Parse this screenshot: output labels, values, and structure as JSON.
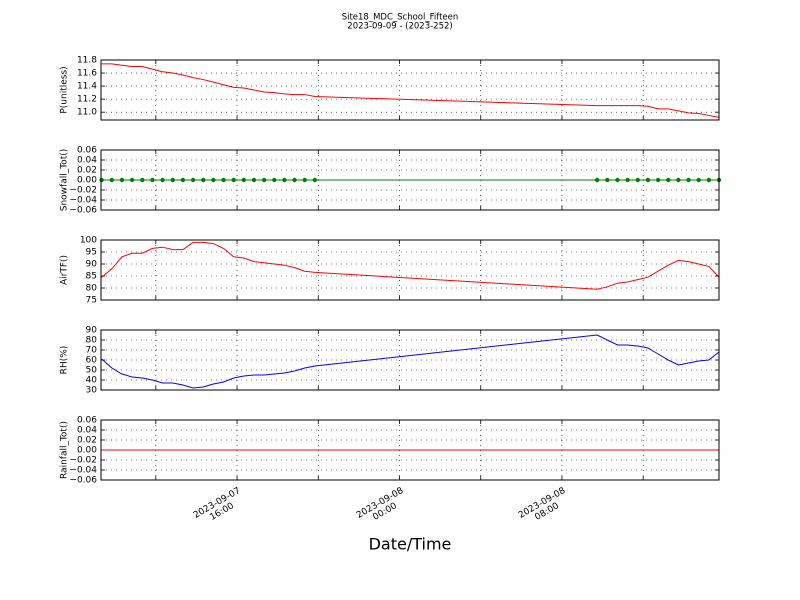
{
  "chart_data": [
    {
      "type": "line",
      "title": "Site18_MDC_School_Fifteen",
      "subtitle": "2023-09-09 - (2023-252)",
      "ylabel": "P(unitless)",
      "x": [
        "2023-09-07 09:20",
        "2023-09-07 09:50",
        "2023-09-07 10:20",
        "2023-09-07 10:50",
        "2023-09-07 11:20",
        "2023-09-07 11:50",
        "2023-09-07 12:20",
        "2023-09-07 12:50",
        "2023-09-07 13:20",
        "2023-09-07 13:50",
        "2023-09-07 14:20",
        "2023-09-07 14:50",
        "2023-09-07 15:20",
        "2023-09-07 15:50",
        "2023-09-07 16:20",
        "2023-09-07 16:50",
        "2023-09-07 17:20",
        "2023-09-07 17:50",
        "2023-09-07 18:20",
        "2023-09-07 18:50",
        "2023-09-07 19:20",
        "2023-09-07 19:50",
        "2023-09-08 09:44",
        "2023-09-08 10:14",
        "2023-09-08 10:44",
        "2023-09-08 11:14",
        "2023-09-08 11:44",
        "2023-09-08 12:14",
        "2023-09-08 12:44",
        "2023-09-08 13:14",
        "2023-09-08 13:44",
        "2023-09-08 14:14",
        "2023-09-08 14:44",
        "2023-09-08 15:14",
        "2023-09-08 15:44"
      ],
      "xlim": [
        "2023-09-07 09:18",
        "2023-09-08 15:44"
      ],
      "ylim": [
        10.88,
        11.8
      ],
      "yticks": [
        {
          "value": 11,
          "label": "11.0"
        },
        11.2,
        11.4,
        11.6,
        11.8
      ],
      "grid": true,
      "series": [
        {
          "color": "#ff0000",
          "values": [
            11.74,
            11.74,
            11.72,
            11.7,
            11.7,
            11.66,
            11.62,
            11.6,
            11.57,
            11.53,
            11.5,
            11.46,
            11.42,
            11.38,
            11.37,
            11.34,
            11.31,
            11.3,
            11.28,
            11.27,
            11.27,
            11.24,
            11.1,
            11.1,
            11.1,
            11.1,
            11.1,
            11.09,
            11.05,
            11.05,
            11.02,
            10.99,
            10.98,
            10.95,
            10.92
          ]
        }
      ]
    },
    {
      "type": "line",
      "ylabel": "Snowfall_Tot()",
      "x": [
        "2023-09-07 09:20",
        "2023-09-07 09:50",
        "2023-09-07 10:20",
        "2023-09-07 10:50",
        "2023-09-07 11:20",
        "2023-09-07 11:50",
        "2023-09-07 12:20",
        "2023-09-07 12:50",
        "2023-09-07 13:20",
        "2023-09-07 13:50",
        "2023-09-07 14:20",
        "2023-09-07 14:50",
        "2023-09-07 15:20",
        "2023-09-07 15:50",
        "2023-09-07 16:20",
        "2023-09-07 16:50",
        "2023-09-07 17:20",
        "2023-09-07 17:50",
        "2023-09-07 18:20",
        "2023-09-07 18:50",
        "2023-09-07 19:20",
        "2023-09-07 19:50",
        "2023-09-08 09:44",
        "2023-09-08 10:14",
        "2023-09-08 10:44",
        "2023-09-08 11:14",
        "2023-09-08 11:44",
        "2023-09-08 12:14",
        "2023-09-08 12:44",
        "2023-09-08 13:14",
        "2023-09-08 13:44",
        "2023-09-08 14:14",
        "2023-09-08 14:44",
        "2023-09-08 15:14",
        "2023-09-08 15:44"
      ],
      "xlim": [
        "2023-09-07 09:18",
        "2023-09-08 15:44"
      ],
      "ylim": [
        -0.06,
        0.06
      ],
      "yticks": [
        {
          "value": -0.06,
          "label": "−0.06"
        },
        {
          "value": -0.04,
          "label": "−0.04"
        },
        {
          "value": -0.02,
          "label": "−0.02"
        },
        {
          "value": 0,
          "label": "0.00"
        },
        0.02,
        0.04,
        0.06
      ],
      "grid": true,
      "markers": true,
      "series": [
        {
          "color": "#008000",
          "values": [
            0,
            0,
            0,
            0,
            0,
            0,
            0,
            0,
            0,
            0,
            0,
            0,
            0,
            0,
            0,
            0,
            0,
            0,
            0,
            0,
            0,
            0,
            0,
            0,
            0,
            0,
            0,
            0,
            0,
            0,
            0,
            0,
            0,
            0,
            0
          ]
        }
      ]
    },
    {
      "type": "line",
      "ylabel": "AirTF()",
      "x": [
        "2023-09-07 09:20",
        "2023-09-07 09:50",
        "2023-09-07 10:20",
        "2023-09-07 10:50",
        "2023-09-07 11:20",
        "2023-09-07 11:50",
        "2023-09-07 12:20",
        "2023-09-07 12:50",
        "2023-09-07 13:20",
        "2023-09-07 13:50",
        "2023-09-07 14:20",
        "2023-09-07 14:50",
        "2023-09-07 15:20",
        "2023-09-07 15:50",
        "2023-09-07 16:20",
        "2023-09-07 16:50",
        "2023-09-07 17:20",
        "2023-09-07 17:50",
        "2023-09-07 18:20",
        "2023-09-07 18:50",
        "2023-09-07 19:20",
        "2023-09-07 19:50",
        "2023-09-08 09:44",
        "2023-09-08 10:14",
        "2023-09-08 10:44",
        "2023-09-08 11:14",
        "2023-09-08 11:44",
        "2023-09-08 12:14",
        "2023-09-08 12:44",
        "2023-09-08 13:14",
        "2023-09-08 13:44",
        "2023-09-08 14:14",
        "2023-09-08 14:44",
        "2023-09-08 15:14",
        "2023-09-08 15:44"
      ],
      "xlim": [
        "2023-09-07 09:18",
        "2023-09-08 15:44"
      ],
      "ylim": [
        75,
        100
      ],
      "yticks": [
        75,
        80,
        85,
        90,
        95,
        100
      ],
      "grid": true,
      "series": [
        {
          "color": "#ff0000",
          "values": [
            84.5,
            88,
            93,
            94.5,
            94.5,
            96.5,
            97,
            96,
            96,
            99,
            99,
            98.5,
            96.5,
            93,
            92.5,
            91,
            90.5,
            90,
            89.5,
            88.5,
            87,
            86.5,
            79.5,
            80.5,
            82,
            82.5,
            83.5,
            84.5,
            87,
            89.5,
            91.5,
            91,
            90,
            89,
            84.5
          ]
        }
      ]
    },
    {
      "type": "line",
      "ylabel": "RH(%)",
      "x": [
        "2023-09-07 09:20",
        "2023-09-07 09:50",
        "2023-09-07 10:20",
        "2023-09-07 10:50",
        "2023-09-07 11:20",
        "2023-09-07 11:50",
        "2023-09-07 12:20",
        "2023-09-07 12:50",
        "2023-09-07 13:20",
        "2023-09-07 13:50",
        "2023-09-07 14:20",
        "2023-09-07 14:50",
        "2023-09-07 15:20",
        "2023-09-07 15:50",
        "2023-09-07 16:20",
        "2023-09-07 16:50",
        "2023-09-07 17:20",
        "2023-09-07 17:50",
        "2023-09-07 18:20",
        "2023-09-07 18:50",
        "2023-09-07 19:20",
        "2023-09-07 19:50",
        "2023-09-08 09:44",
        "2023-09-08 10:14",
        "2023-09-08 10:44",
        "2023-09-08 11:14",
        "2023-09-08 11:44",
        "2023-09-08 12:14",
        "2023-09-08 12:44",
        "2023-09-08 13:14",
        "2023-09-08 13:44",
        "2023-09-08 14:14",
        "2023-09-08 14:44",
        "2023-09-08 15:14",
        "2023-09-08 15:44"
      ],
      "xlim": [
        "2023-09-07 09:18",
        "2023-09-08 15:44"
      ],
      "ylim": [
        30,
        90
      ],
      "yticks": [
        30,
        40,
        50,
        60,
        70,
        80,
        90
      ],
      "grid": true,
      "series": [
        {
          "color": "#0000ff",
          "values": [
            61,
            52,
            46,
            43,
            42,
            40,
            37,
            37,
            35,
            32,
            33,
            36,
            38,
            42,
            44,
            45,
            45,
            46,
            47,
            49,
            52,
            54,
            85,
            80,
            75,
            75,
            74,
            72,
            66,
            60,
            55,
            57,
            59,
            60,
            68
          ]
        }
      ]
    },
    {
      "type": "line",
      "ylabel": "Rainfall_Tot()",
      "xlabel": "Date/Time",
      "x": [
        "2023-09-07 09:20",
        "2023-09-07 09:50",
        "2023-09-07 10:20",
        "2023-09-07 10:50",
        "2023-09-07 11:20",
        "2023-09-07 11:50",
        "2023-09-07 12:20",
        "2023-09-07 12:50",
        "2023-09-07 13:20",
        "2023-09-07 13:50",
        "2023-09-07 14:20",
        "2023-09-07 14:50",
        "2023-09-07 15:20",
        "2023-09-07 15:50",
        "2023-09-07 16:20",
        "2023-09-07 16:50",
        "2023-09-07 17:20",
        "2023-09-07 17:50",
        "2023-09-07 18:20",
        "2023-09-07 18:50",
        "2023-09-07 19:20",
        "2023-09-07 19:50",
        "2023-09-08 09:44",
        "2023-09-08 10:14",
        "2023-09-08 10:44",
        "2023-09-08 11:14",
        "2023-09-08 11:44",
        "2023-09-08 12:14",
        "2023-09-08 12:44",
        "2023-09-08 13:14",
        "2023-09-08 13:44",
        "2023-09-08 14:14",
        "2023-09-08 14:44",
        "2023-09-08 15:14",
        "2023-09-08 15:44"
      ],
      "xlim": [
        "2023-09-07 09:18",
        "2023-09-08 15:44"
      ],
      "xticks": [
        {
          "value": "2023-09-07 16:00",
          "label": "2023-09-07\n16:00"
        },
        {
          "value": "2023-09-08 00:00",
          "label": "2023-09-08\n00:00"
        },
        {
          "value": "2023-09-08 08:00",
          "label": "2023-09-08\n08:00"
        }
      ],
      "xminor": [
        "2023-09-07 12:00",
        "2023-09-07 20:00",
        "2023-09-08 04:00",
        "2023-09-08 12:00"
      ],
      "ylim": [
        -0.06,
        0.06
      ],
      "yticks": [
        {
          "value": -0.06,
          "label": "−0.06"
        },
        {
          "value": -0.04,
          "label": "−0.04"
        },
        {
          "value": -0.02,
          "label": "−0.02"
        },
        {
          "value": 0,
          "label": "0.00"
        },
        0.02,
        0.04,
        0.06
      ],
      "grid": true,
      "series": [
        {
          "color": "#ff0000",
          "values": [
            0,
            0,
            0,
            0,
            0,
            0,
            0,
            0,
            0,
            0,
            0,
            0,
            0,
            0,
            0,
            0,
            0,
            0,
            0,
            0,
            0,
            0,
            0,
            0,
            0,
            0,
            0,
            0,
            0,
            0,
            0,
            0,
            0,
            0,
            0
          ]
        }
      ]
    }
  ]
}
